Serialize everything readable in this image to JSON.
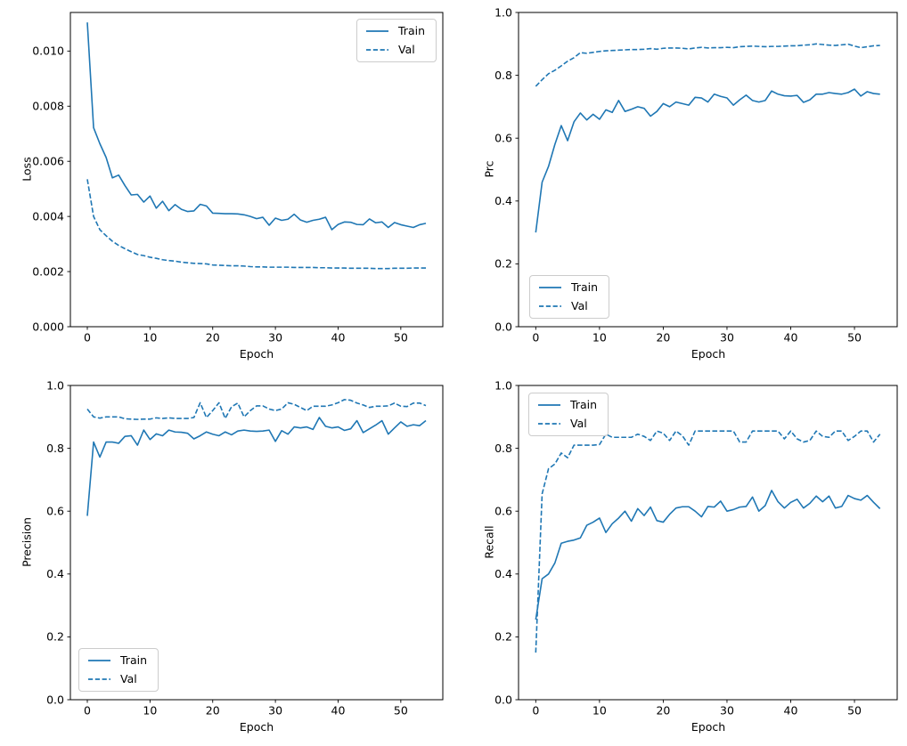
{
  "style": {
    "line_color": "#1f77b4",
    "axis_color": "#000000",
    "text_color": "#000000",
    "legend_border_color": "#cccccc",
    "background_color": "#ffffff"
  },
  "legend": {
    "train_label": "Train",
    "val_label": "Val"
  },
  "chart_data": [
    {
      "type": "line",
      "title": "",
      "xlabel": "Epoch",
      "ylabel": "Loss",
      "xlim": [
        -2.7,
        56.7
      ],
      "ylim": [
        0,
        0.0114
      ],
      "xticks": [
        0,
        10,
        20,
        30,
        40,
        50
      ],
      "xtick_labels": [
        "0",
        "10",
        "20",
        "30",
        "40",
        "50"
      ],
      "yticks": [
        0.0,
        0.002,
        0.004,
        0.006,
        0.008,
        0.01
      ],
      "ytick_labels": [
        "0.000",
        "0.002",
        "0.004",
        "0.006",
        "0.008",
        "0.010"
      ],
      "grid": false,
      "legend_position": "upper right",
      "x_epochs": "0 to 54 step 1",
      "series": [
        {
          "name": "Train",
          "style": "solid",
          "values": [
            0.01104,
            0.00722,
            0.00664,
            0.00614,
            0.0054,
            0.0055,
            0.00512,
            0.00478,
            0.0048,
            0.00452,
            0.00474,
            0.0043,
            0.00455,
            0.00421,
            0.00443,
            0.00426,
            0.00418,
            0.0042,
            0.00444,
            0.00438,
            0.00412,
            0.00411,
            0.0041,
            0.0041,
            0.00409,
            0.00406,
            0.004,
            0.00392,
            0.00397,
            0.00368,
            0.00394,
            0.00386,
            0.0039,
            0.00408,
            0.00387,
            0.00379,
            0.00386,
            0.0039,
            0.00397,
            0.00352,
            0.00371,
            0.0038,
            0.00379,
            0.00371,
            0.0037,
            0.00391,
            0.00377,
            0.0038,
            0.0036,
            0.00378,
            0.0037,
            0.00365,
            0.0036,
            0.0037,
            0.00375
          ]
        },
        {
          "name": "Val",
          "style": "dashed",
          "values": [
            0.00535,
            0.004,
            0.00352,
            0.0033,
            0.0031,
            0.00295,
            0.00283,
            0.00272,
            0.00262,
            0.00258,
            0.00252,
            0.00248,
            0.00243,
            0.0024,
            0.00238,
            0.00234,
            0.00232,
            0.0023,
            0.00229,
            0.00228,
            0.00224,
            0.00223,
            0.00222,
            0.00221,
            0.00221,
            0.0022,
            0.00218,
            0.00217,
            0.00217,
            0.00216,
            0.00216,
            0.00216,
            0.00216,
            0.00215,
            0.00215,
            0.00215,
            0.00215,
            0.00214,
            0.00214,
            0.00213,
            0.00213,
            0.00213,
            0.00212,
            0.00212,
            0.00212,
            0.00212,
            0.00211,
            0.00211,
            0.00211,
            0.00212,
            0.00212,
            0.00212,
            0.00213,
            0.00213,
            0.00213
          ]
        }
      ]
    },
    {
      "type": "line",
      "title": "",
      "xlabel": "Epoch",
      "ylabel": "Prc",
      "xlim": [
        -2.7,
        56.7
      ],
      "ylim": [
        0,
        1.0
      ],
      "xticks": [
        0,
        10,
        20,
        30,
        40,
        50
      ],
      "xtick_labels": [
        "0",
        "10",
        "20",
        "30",
        "40",
        "50"
      ],
      "yticks": [
        0.0,
        0.2,
        0.4,
        0.6,
        0.8,
        1.0
      ],
      "ytick_labels": [
        "0.0",
        "0.2",
        "0.4",
        "0.6",
        "0.8",
        "1.0"
      ],
      "grid": false,
      "legend_position": "lower left",
      "x_epochs": "0 to 54 step 1",
      "series": [
        {
          "name": "Train",
          "style": "solid",
          "values": [
            0.3,
            0.46,
            0.51,
            0.58,
            0.64,
            0.592,
            0.652,
            0.68,
            0.658,
            0.676,
            0.66,
            0.69,
            0.682,
            0.72,
            0.685,
            0.692,
            0.7,
            0.695,
            0.67,
            0.685,
            0.71,
            0.7,
            0.715,
            0.71,
            0.705,
            0.73,
            0.728,
            0.715,
            0.74,
            0.733,
            0.728,
            0.705,
            0.722,
            0.737,
            0.72,
            0.715,
            0.72,
            0.75,
            0.74,
            0.735,
            0.734,
            0.736,
            0.714,
            0.722,
            0.74,
            0.74,
            0.745,
            0.742,
            0.74,
            0.745,
            0.756,
            0.734,
            0.748,
            0.742,
            0.74
          ]
        },
        {
          "name": "Val",
          "style": "dashed",
          "values": [
            0.765,
            0.786,
            0.805,
            0.816,
            0.83,
            0.845,
            0.856,
            0.872,
            0.87,
            0.873,
            0.876,
            0.878,
            0.879,
            0.88,
            0.881,
            0.882,
            0.882,
            0.883,
            0.885,
            0.883,
            0.886,
            0.887,
            0.887,
            0.886,
            0.884,
            0.887,
            0.889,
            0.887,
            0.888,
            0.888,
            0.889,
            0.888,
            0.891,
            0.892,
            0.893,
            0.892,
            0.891,
            0.892,
            0.892,
            0.893,
            0.894,
            0.894,
            0.896,
            0.897,
            0.9,
            0.898,
            0.896,
            0.895,
            0.897,
            0.899,
            0.893,
            0.888,
            0.891,
            0.894,
            0.895
          ]
        }
      ]
    },
    {
      "type": "line",
      "title": "",
      "xlabel": "Epoch",
      "ylabel": "Precision",
      "xlim": [
        -2.7,
        56.7
      ],
      "ylim": [
        0,
        1.0
      ],
      "xticks": [
        0,
        10,
        20,
        30,
        40,
        50
      ],
      "xtick_labels": [
        "0",
        "10",
        "20",
        "30",
        "40",
        "50"
      ],
      "yticks": [
        0.0,
        0.2,
        0.4,
        0.6,
        0.8,
        1.0
      ],
      "ytick_labels": [
        "0.0",
        "0.2",
        "0.4",
        "0.6",
        "0.8",
        "1.0"
      ],
      "grid": false,
      "legend_position": "lower left",
      "x_epochs": "0 to 54 step 1",
      "series": [
        {
          "name": "Train",
          "style": "solid",
          "values": [
            0.585,
            0.82,
            0.772,
            0.82,
            0.82,
            0.816,
            0.838,
            0.84,
            0.81,
            0.858,
            0.828,
            0.846,
            0.84,
            0.858,
            0.852,
            0.851,
            0.848,
            0.83,
            0.84,
            0.852,
            0.845,
            0.84,
            0.852,
            0.843,
            0.855,
            0.858,
            0.855,
            0.854,
            0.855,
            0.858,
            0.822,
            0.856,
            0.845,
            0.868,
            0.865,
            0.868,
            0.86,
            0.898,
            0.87,
            0.865,
            0.868,
            0.857,
            0.862,
            0.888,
            0.85,
            0.862,
            0.874,
            0.888,
            0.845,
            0.865,
            0.884,
            0.87,
            0.875,
            0.872,
            0.888
          ]
        },
        {
          "name": "Val",
          "style": "dashed",
          "values": [
            0.925,
            0.9,
            0.896,
            0.9,
            0.9,
            0.9,
            0.894,
            0.893,
            0.892,
            0.893,
            0.893,
            0.897,
            0.895,
            0.897,
            0.895,
            0.895,
            0.895,
            0.898,
            0.945,
            0.898,
            0.92,
            0.945,
            0.895,
            0.932,
            0.944,
            0.9,
            0.92,
            0.935,
            0.935,
            0.925,
            0.92,
            0.925,
            0.945,
            0.94,
            0.93,
            0.92,
            0.934,
            0.934,
            0.934,
            0.938,
            0.945,
            0.955,
            0.953,
            0.944,
            0.938,
            0.93,
            0.934,
            0.934,
            0.935,
            0.944,
            0.934,
            0.933,
            0.944,
            0.944,
            0.936
          ]
        }
      ]
    },
    {
      "type": "line",
      "title": "",
      "xlabel": "Epoch",
      "ylabel": "Recall",
      "xlim": [
        -2.7,
        56.7
      ],
      "ylim": [
        0,
        1.0
      ],
      "xticks": [
        0,
        10,
        20,
        30,
        40,
        50
      ],
      "xtick_labels": [
        "0",
        "10",
        "20",
        "30",
        "40",
        "50"
      ],
      "yticks": [
        0.0,
        0.2,
        0.4,
        0.6,
        0.8,
        1.0
      ],
      "ytick_labels": [
        "0.0",
        "0.2",
        "0.4",
        "0.6",
        "0.8",
        "1.0"
      ],
      "grid": false,
      "legend_position": "upper left",
      "x_epochs": "0 to 54 step 1",
      "series": [
        {
          "name": "Train",
          "style": "solid",
          "values": [
            0.255,
            0.385,
            0.4,
            0.435,
            0.498,
            0.504,
            0.508,
            0.515,
            0.555,
            0.565,
            0.578,
            0.532,
            0.56,
            0.578,
            0.6,
            0.568,
            0.608,
            0.586,
            0.613,
            0.57,
            0.565,
            0.59,
            0.61,
            0.614,
            0.614,
            0.6,
            0.582,
            0.615,
            0.613,
            0.632,
            0.6,
            0.605,
            0.613,
            0.615,
            0.645,
            0.6,
            0.618,
            0.666,
            0.63,
            0.61,
            0.628,
            0.638,
            0.61,
            0.625,
            0.648,
            0.63,
            0.648,
            0.61,
            0.615,
            0.65,
            0.64,
            0.635,
            0.65,
            0.628,
            0.608
          ]
        },
        {
          "name": "Val",
          "style": "dashed",
          "values": [
            0.15,
            0.655,
            0.735,
            0.75,
            0.785,
            0.77,
            0.81,
            0.81,
            0.81,
            0.81,
            0.812,
            0.845,
            0.835,
            0.835,
            0.835,
            0.835,
            0.845,
            0.838,
            0.825,
            0.855,
            0.848,
            0.825,
            0.855,
            0.84,
            0.81,
            0.855,
            0.855,
            0.855,
            0.855,
            0.855,
            0.855,
            0.855,
            0.82,
            0.82,
            0.855,
            0.855,
            0.855,
            0.855,
            0.855,
            0.83,
            0.855,
            0.83,
            0.82,
            0.825,
            0.855,
            0.838,
            0.835,
            0.855,
            0.855,
            0.825,
            0.838,
            0.855,
            0.855,
            0.82,
            0.845
          ]
        }
      ]
    }
  ]
}
